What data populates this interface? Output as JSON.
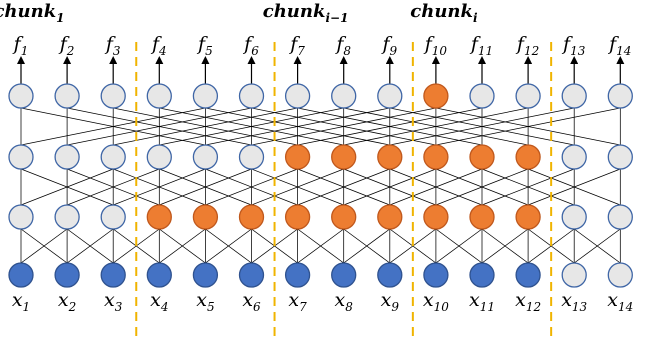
{
  "chunk_labels": [
    {
      "base": "chunk",
      "sub": "1",
      "column": 1
    },
    {
      "base": "chunk",
      "sub": "i−1",
      "column": 7
    },
    {
      "base": "chunk",
      "sub": "i",
      "column": 10
    }
  ],
  "output_labels": [
    {
      "base": "f",
      "sub": "1"
    },
    {
      "base": "f",
      "sub": "2"
    },
    {
      "base": "f",
      "sub": "3"
    },
    {
      "base": "f",
      "sub": "4"
    },
    {
      "base": "f",
      "sub": "5"
    },
    {
      "base": "f",
      "sub": "6"
    },
    {
      "base": "f",
      "sub": "7"
    },
    {
      "base": "f",
      "sub": "8"
    },
    {
      "base": "f",
      "sub": "9"
    },
    {
      "base": "f",
      "sub": "10"
    },
    {
      "base": "f",
      "sub": "11"
    },
    {
      "base": "f",
      "sub": "12"
    },
    {
      "base": "f",
      "sub": "13"
    },
    {
      "base": "f",
      "sub": "14"
    }
  ],
  "input_labels": [
    {
      "base": "x",
      "sub": "1"
    },
    {
      "base": "x",
      "sub": "2"
    },
    {
      "base": "x",
      "sub": "3"
    },
    {
      "base": "x",
      "sub": "4"
    },
    {
      "base": "x",
      "sub": "5"
    },
    {
      "base": "x",
      "sub": "6"
    },
    {
      "base": "x",
      "sub": "7"
    },
    {
      "base": "x",
      "sub": "8"
    },
    {
      "base": "x",
      "sub": "9"
    },
    {
      "base": "x",
      "sub": "10"
    },
    {
      "base": "x",
      "sub": "11"
    },
    {
      "base": "x",
      "sub": "12"
    },
    {
      "base": "x",
      "sub": "13"
    },
    {
      "base": "x",
      "sub": "14"
    }
  ],
  "layers_top_to_bottom": [
    [
      "g",
      "g",
      "g",
      "g",
      "g",
      "g",
      "g",
      "g",
      "g",
      "o",
      "g",
      "g",
      "g",
      "g"
    ],
    [
      "g",
      "g",
      "g",
      "g",
      "g",
      "g",
      "o",
      "o",
      "o",
      "o",
      "o",
      "o",
      "g",
      "g"
    ],
    [
      "g",
      "g",
      "g",
      "o",
      "o",
      "o",
      "o",
      "o",
      "o",
      "o",
      "o",
      "o",
      "g",
      "g"
    ],
    [
      "b",
      "b",
      "b",
      "b",
      "b",
      "b",
      "b",
      "b",
      "b",
      "b",
      "b",
      "b",
      "g",
      "g"
    ]
  ],
  "dividers_after_columns": [
    3,
    6,
    9,
    12
  ],
  "colors": {
    "g": {
      "fill": "#e7e7e7",
      "stroke": "#3f66a6"
    },
    "o": {
      "fill": "#ed7d31",
      "stroke": "#c0581c"
    },
    "b": {
      "fill": "#4472c4",
      "stroke": "#2f528f"
    },
    "divider": "#f0b400"
  }
}
